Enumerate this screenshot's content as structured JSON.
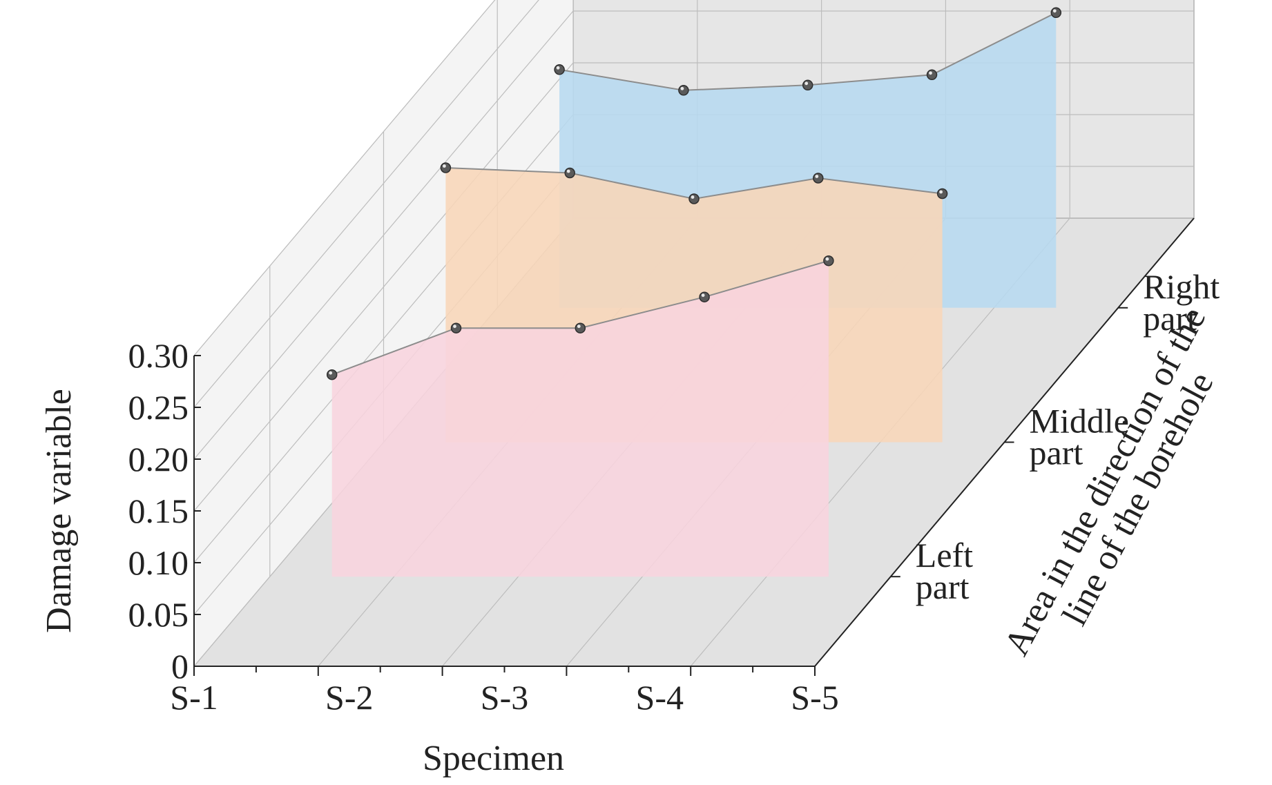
{
  "chart_data": {
    "type": "3d-line",
    "xlabel": "Specimen",
    "ylabel": "Area in the direction of the line of the borehole",
    "zlabel": "Damage variable",
    "ylabel_lines": [
      "Area in the direction of the",
      "line of the borehole"
    ],
    "x_categories": [
      "S-1",
      "S-2",
      "S-3",
      "S-4",
      "S-5"
    ],
    "y_categories": [
      {
        "lines": [
          "Left",
          "part"
        ]
      },
      {
        "lines": [
          "Middle",
          "part"
        ]
      },
      {
        "lines": [
          "Right",
          "part"
        ]
      }
    ],
    "z_ticks": [
      "0",
      "0.05",
      "0.10",
      "0.15",
      "0.20",
      "0.25",
      "0.30"
    ],
    "zlim": [
      0,
      0.3
    ],
    "grid": true,
    "series": [
      {
        "values": [
          0.195,
          0.24,
          0.24,
          0.27,
          0.305
        ],
        "color": "#f8d4de"
      },
      {
        "values": [
          0.265,
          0.26,
          0.235,
          0.255,
          0.24
        ],
        "color": "#f8d6b8"
      },
      {
        "values": [
          0.23,
          0.21,
          0.215,
          0.225,
          0.285
        ],
        "color": "#b7d9f0"
      }
    ]
  }
}
